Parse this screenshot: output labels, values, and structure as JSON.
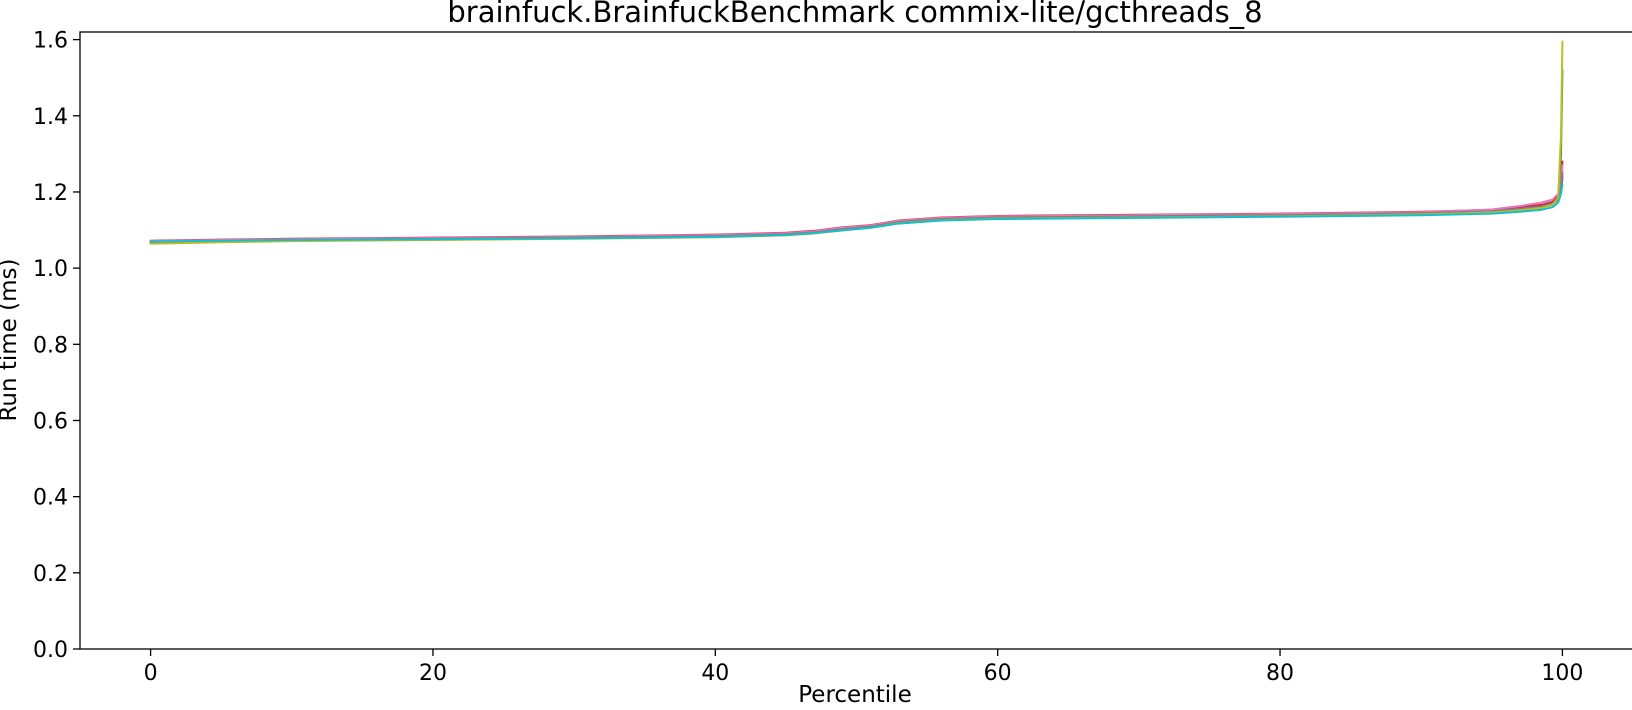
{
  "chart_data": {
    "type": "line",
    "title": "brainfuck.BrainfuckBenchmark commix-lite/gcthreads_8",
    "xlabel": "Percentile",
    "ylabel": "Run time (ms)",
    "xlim": [
      -5,
      105
    ],
    "ylim": [
      0.0,
      1.62
    ],
    "xticks": [
      0,
      20,
      40,
      60,
      80,
      100
    ],
    "xtick_labels": [
      "0",
      "20",
      "40",
      "60",
      "80",
      "100"
    ],
    "yticks": [
      0.0,
      0.2,
      0.4,
      0.6,
      0.8,
      1.0,
      1.2,
      1.4,
      1.6
    ],
    "ytick_labels": [
      "0.0",
      "0.2",
      "0.4",
      "0.6",
      "0.8",
      "1.0",
      "1.2",
      "1.4",
      "1.6"
    ],
    "grid": false,
    "x": [
      0,
      5,
      10,
      20,
      30,
      40,
      45,
      47,
      49,
      51,
      53,
      56,
      60,
      70,
      80,
      90,
      95,
      97,
      98.5,
      99.3,
      99.7,
      99.9,
      100
    ],
    "series": [
      {
        "color": "#1f77b4",
        "values": [
          1.07,
          1.073,
          1.075,
          1.078,
          1.08,
          1.085,
          1.09,
          1.095,
          1.103,
          1.11,
          1.122,
          1.13,
          1.134,
          1.137,
          1.14,
          1.145,
          1.15,
          1.155,
          1.16,
          1.168,
          1.18,
          1.21,
          1.24
        ]
      },
      {
        "color": "#ff7f0e",
        "values": [
          1.066,
          1.07,
          1.073,
          1.076,
          1.079,
          1.083,
          1.088,
          1.093,
          1.101,
          1.108,
          1.12,
          1.128,
          1.132,
          1.135,
          1.138,
          1.143,
          1.15,
          1.158,
          1.165,
          1.172,
          1.185,
          1.215,
          1.26
        ]
      },
      {
        "color": "#2ca02c",
        "values": [
          1.068,
          1.071,
          1.074,
          1.077,
          1.08,
          1.084,
          1.089,
          1.094,
          1.102,
          1.109,
          1.121,
          1.129,
          1.133,
          1.136,
          1.139,
          1.144,
          1.149,
          1.154,
          1.16,
          1.168,
          1.185,
          1.3,
          1.52
        ]
      },
      {
        "color": "#d62728",
        "values": [
          1.072,
          1.075,
          1.077,
          1.08,
          1.083,
          1.088,
          1.093,
          1.098,
          1.107,
          1.113,
          1.125,
          1.133,
          1.137,
          1.14,
          1.143,
          1.148,
          1.153,
          1.16,
          1.166,
          1.174,
          1.19,
          1.225,
          1.28
        ]
      },
      {
        "color": "#9467bd",
        "values": [
          1.069,
          1.072,
          1.075,
          1.078,
          1.081,
          1.085,
          1.09,
          1.095,
          1.103,
          1.11,
          1.122,
          1.13,
          1.134,
          1.137,
          1.14,
          1.145,
          1.15,
          1.156,
          1.162,
          1.17,
          1.182,
          1.21,
          1.245
        ]
      },
      {
        "color": "#8c564b",
        "values": [
          1.067,
          1.07,
          1.073,
          1.076,
          1.079,
          1.083,
          1.088,
          1.093,
          1.101,
          1.108,
          1.12,
          1.128,
          1.132,
          1.135,
          1.138,
          1.143,
          1.148,
          1.154,
          1.16,
          1.168,
          1.18,
          1.205,
          1.235
        ]
      },
      {
        "color": "#e377c2",
        "values": [
          1.071,
          1.074,
          1.076,
          1.079,
          1.082,
          1.087,
          1.092,
          1.097,
          1.106,
          1.112,
          1.124,
          1.132,
          1.136,
          1.139,
          1.142,
          1.147,
          1.154,
          1.163,
          1.172,
          1.18,
          1.195,
          1.23,
          1.27
        ]
      },
      {
        "color": "#7f7f7f",
        "values": [
          1.068,
          1.071,
          1.074,
          1.077,
          1.08,
          1.084,
          1.089,
          1.094,
          1.102,
          1.109,
          1.121,
          1.129,
          1.133,
          1.136,
          1.139,
          1.144,
          1.149,
          1.155,
          1.161,
          1.169,
          1.182,
          1.21,
          1.25
        ]
      },
      {
        "color": "#bcbd22",
        "values": [
          1.064,
          1.068,
          1.071,
          1.074,
          1.077,
          1.081,
          1.086,
          1.091,
          1.099,
          1.106,
          1.118,
          1.126,
          1.13,
          1.133,
          1.136,
          1.141,
          1.146,
          1.152,
          1.158,
          1.166,
          1.185,
          1.35,
          1.595
        ]
      },
      {
        "color": "#17becf",
        "values": [
          1.07,
          1.072,
          1.074,
          1.076,
          1.078,
          1.082,
          1.087,
          1.092,
          1.099,
          1.106,
          1.117,
          1.125,
          1.129,
          1.132,
          1.135,
          1.139,
          1.143,
          1.148,
          1.153,
          1.16,
          1.172,
          1.195,
          1.22
        ]
      }
    ]
  }
}
